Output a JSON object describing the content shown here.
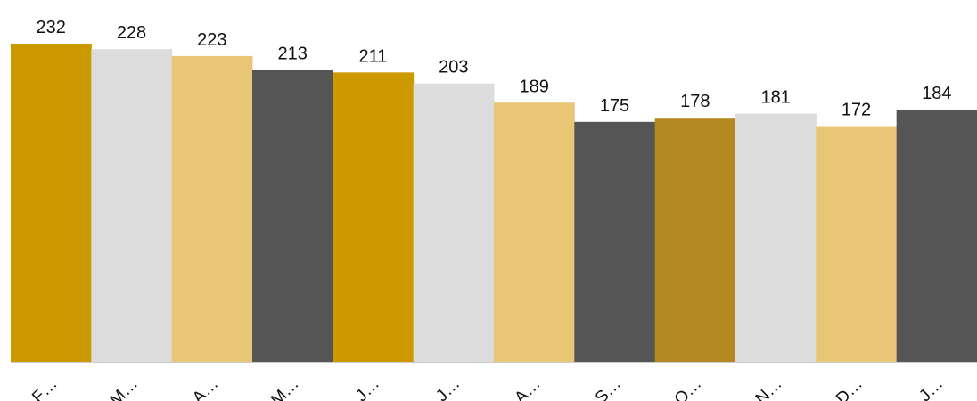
{
  "chart_data": {
    "type": "bar",
    "categories": [
      "F…",
      "M…",
      "A…",
      "M…",
      "J…",
      "J…",
      "A…",
      "S…",
      "O…",
      "N…",
      "D…",
      "J…"
    ],
    "values": [
      232,
      228,
      223,
      213,
      211,
      203,
      189,
      175,
      178,
      181,
      172,
      184
    ],
    "bar_colors": [
      "#CC9900",
      "#DCDCDC",
      "#E8C675",
      "#555555",
      "#CC9900",
      "#DCDCDC",
      "#E8C675",
      "#555555",
      "#B38820",
      "#DCDCDC",
      "#E8C675",
      "#555555"
    ],
    "title": "",
    "xlabel": "",
    "ylabel": "",
    "ylim": [
      0,
      240
    ],
    "grid": false,
    "legend": "none",
    "data_labels": true,
    "baseline_color": "#CCCCCC"
  }
}
